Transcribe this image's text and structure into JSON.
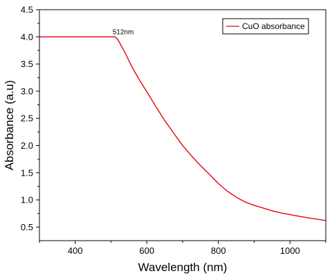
{
  "chart_data": {
    "type": "line",
    "title": "",
    "xlabel": "Wavelength (nm)",
    "ylabel": "Absorbance (a.u)",
    "xlim": [
      300,
      1100
    ],
    "ylim": [
      0.25,
      4.5
    ],
    "x_ticks": [
      400,
      600,
      800,
      1000
    ],
    "x_tick_labels": [
      "400",
      "600",
      "800",
      "1000"
    ],
    "y_ticks": [
      0.5,
      1.0,
      1.5,
      2.0,
      2.5,
      3.0,
      3.5,
      4.0,
      4.5
    ],
    "y_tick_labels": [
      "0.5",
      "1.0",
      "1.5",
      "2.0",
      "2.5",
      "3.0",
      "3.5",
      "4.0",
      "4.5"
    ],
    "grid": false,
    "legend_position": "top-right",
    "series": [
      {
        "name": "CuO absorbance",
        "color": "#e8000b",
        "x": [
          300,
          350,
          400,
          450,
          500,
          512,
          520,
          530,
          540,
          550,
          560,
          580,
          600,
          625,
          650,
          675,
          700,
          725,
          750,
          775,
          800,
          825,
          850,
          875,
          900,
          925,
          950,
          975,
          1000,
          1025,
          1050,
          1075,
          1100
        ],
        "y": [
          4.0,
          4.0,
          4.0,
          4.0,
          4.0,
          4.0,
          3.94,
          3.82,
          3.7,
          3.56,
          3.43,
          3.2,
          2.99,
          2.72,
          2.46,
          2.23,
          2.0,
          1.81,
          1.63,
          1.47,
          1.3,
          1.16,
          1.05,
          0.96,
          0.9,
          0.85,
          0.8,
          0.76,
          0.73,
          0.7,
          0.67,
          0.645,
          0.62
        ]
      }
    ],
    "annotations": [
      {
        "text": "512nm",
        "x": 512,
        "y": 4.0
      }
    ]
  }
}
